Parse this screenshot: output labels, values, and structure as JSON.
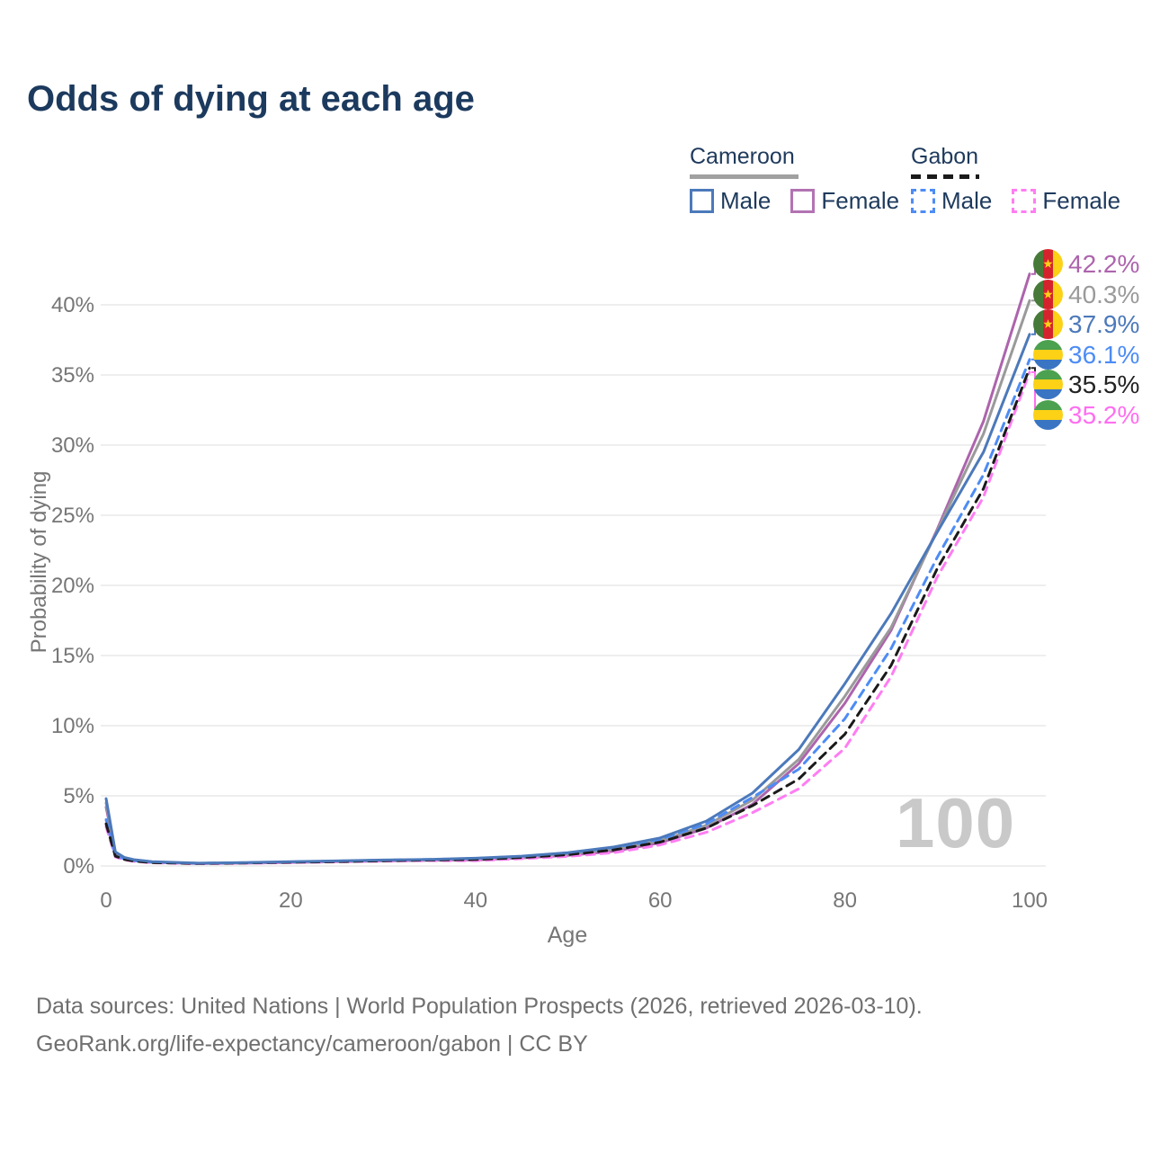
{
  "title": "Odds of dying at each age",
  "legend": {
    "groups": [
      {
        "name": "Cameroon",
        "line_style": "solid",
        "line_color": "#a0a0a0",
        "items": [
          {
            "label": "Male",
            "color": "#4c79ba",
            "style": "solid"
          },
          {
            "label": "Female",
            "color": "#b273b2",
            "style": "solid"
          }
        ]
      },
      {
        "name": "Gabon",
        "line_style": "dashed",
        "line_color": "#1a1a1a",
        "items": [
          {
            "label": "Male",
            "color": "#4d8cf5",
            "style": "dashed"
          },
          {
            "label": "Female",
            "color": "#ff7df2",
            "style": "dashed"
          }
        ]
      }
    ]
  },
  "watermark": "100",
  "end_labels": [
    {
      "text": "42.2%",
      "pct": 42.2,
      "color": "#ad64ad",
      "country": "Cameroon",
      "series": "Cameroon Female"
    },
    {
      "text": "40.3%",
      "pct": 40.3,
      "color": "#9a9a9a",
      "country": "Cameroon",
      "series": "Cameroon (both sexes)"
    },
    {
      "text": "37.9%",
      "pct": 37.9,
      "color": "#4c79ba",
      "country": "Cameroon",
      "series": "Cameroon Male"
    },
    {
      "text": "36.1%",
      "pct": 36.1,
      "color": "#4d8cf5",
      "country": "Gabon",
      "series": "Gabon Male"
    },
    {
      "text": "35.5%",
      "pct": 35.5,
      "color": "#222222",
      "country": "Gabon",
      "series": "Gabon (both sexes)"
    },
    {
      "text": "35.2%",
      "pct": 35.2,
      "color": "#ff6ef0",
      "country": "Gabon",
      "series": "Gabon Female"
    }
  ],
  "footer": {
    "line1": "Data sources: United Nations | World Population Prospects (2026, retrieved 2026-03-10).",
    "line2": "GeoRank.org/life-expectancy/cameroon/gabon | CC BY"
  },
  "chart_data": {
    "type": "line",
    "title": "Odds of dying at each age",
    "xlabel": "Age",
    "ylabel": "Probability of dying",
    "xlim": [
      0,
      100
    ],
    "ylim_pct": [
      0,
      45
    ],
    "grid": "horizontal",
    "x_ticks": [
      {
        "value": 0,
        "label": "0"
      },
      {
        "value": 20,
        "label": "20"
      },
      {
        "value": 40,
        "label": "40"
      },
      {
        "value": 60,
        "label": "60"
      },
      {
        "value": 80,
        "label": "80"
      },
      {
        "value": 100,
        "label": "100"
      }
    ],
    "y_ticks": [
      {
        "pct": 0,
        "label": "0%"
      },
      {
        "pct": 5,
        "label": "5%"
      },
      {
        "pct": 10,
        "label": "10%"
      },
      {
        "pct": 15,
        "label": "15%"
      },
      {
        "pct": 20,
        "label": "20%"
      },
      {
        "pct": 25,
        "label": "25%"
      },
      {
        "pct": 30,
        "label": "30%"
      },
      {
        "pct": 35,
        "label": "35%"
      },
      {
        "pct": 40,
        "label": "40%"
      }
    ],
    "ages": [
      0,
      1,
      2,
      3,
      5,
      10,
      15,
      20,
      25,
      30,
      35,
      40,
      45,
      50,
      55,
      60,
      65,
      70,
      75,
      80,
      85,
      90,
      95,
      100
    ],
    "series": [
      {
        "name": "Cameroon Male",
        "country": "Cameroon",
        "sex": "Male",
        "style": "solid",
        "color": "#4c79ba",
        "values_pct": [
          4.8,
          1.0,
          0.6,
          0.45,
          0.3,
          0.2,
          0.24,
          0.3,
          0.36,
          0.42,
          0.47,
          0.55,
          0.7,
          0.95,
          1.35,
          2.0,
          3.2,
          5.2,
          8.3,
          13.0,
          18.0,
          23.8,
          29.5,
          37.9
        ]
      },
      {
        "name": "Cameroon Female",
        "country": "Cameroon",
        "sex": "Female",
        "style": "solid",
        "color": "#ad64ad",
        "values_pct": [
          4.2,
          0.9,
          0.54,
          0.4,
          0.26,
          0.17,
          0.2,
          0.25,
          0.3,
          0.35,
          0.4,
          0.42,
          0.57,
          0.75,
          1.05,
          1.65,
          2.7,
          4.4,
          7.3,
          11.6,
          16.8,
          24.0,
          31.7,
          42.2
        ]
      },
      {
        "name": "Cameroon (both sexes)",
        "country": "Cameroon",
        "sex": "Both",
        "style": "solid",
        "color": "#9a9a9a",
        "values_pct": [
          4.5,
          0.95,
          0.57,
          0.42,
          0.28,
          0.18,
          0.22,
          0.27,
          0.32,
          0.38,
          0.43,
          0.48,
          0.63,
          0.85,
          1.2,
          1.8,
          2.9,
          4.7,
          7.6,
          12.1,
          17.0,
          23.9,
          30.8,
          40.3
        ]
      },
      {
        "name": "Gabon Male",
        "country": "Gabon",
        "sex": "Male",
        "style": "dashed",
        "color": "#4d8cf5",
        "values_pct": [
          3.3,
          0.75,
          0.5,
          0.38,
          0.26,
          0.19,
          0.23,
          0.29,
          0.35,
          0.41,
          0.46,
          0.54,
          0.68,
          0.92,
          1.3,
          1.9,
          3.0,
          4.9,
          6.9,
          10.5,
          15.5,
          22.0,
          27.9,
          36.1
        ]
      },
      {
        "name": "Gabon Female",
        "country": "Gabon",
        "sex": "Female",
        "style": "dashed",
        "color": "#ff7df2",
        "values_pct": [
          2.8,
          0.65,
          0.43,
          0.33,
          0.22,
          0.16,
          0.19,
          0.24,
          0.29,
          0.34,
          0.38,
          0.38,
          0.52,
          0.68,
          0.95,
          1.5,
          2.4,
          3.8,
          5.5,
          8.4,
          13.5,
          20.6,
          26.3,
          35.2
        ]
      },
      {
        "name": "Gabon (both sexes)",
        "country": "Gabon",
        "sex": "Both",
        "style": "dashed",
        "color": "#1a1a1a",
        "values_pct": [
          3.0,
          0.7,
          0.46,
          0.35,
          0.24,
          0.17,
          0.21,
          0.26,
          0.31,
          0.37,
          0.42,
          0.46,
          0.6,
          0.8,
          1.15,
          1.7,
          2.7,
          4.3,
          6.2,
          9.4,
          14.3,
          21.2,
          26.9,
          35.5
        ]
      }
    ]
  }
}
